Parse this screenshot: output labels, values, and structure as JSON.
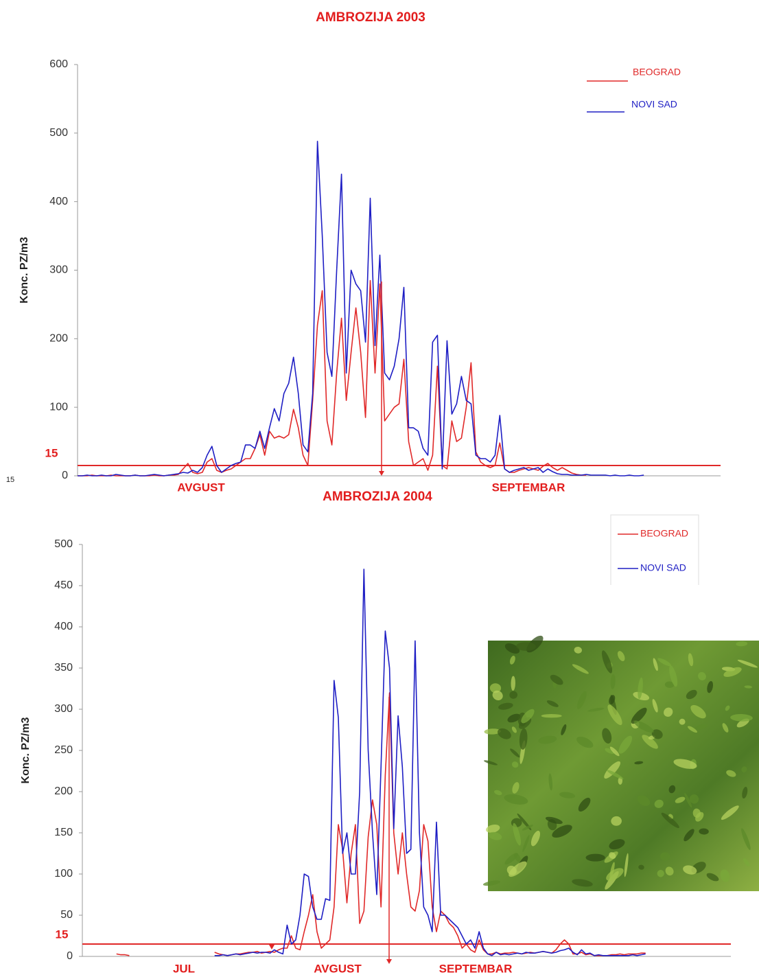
{
  "chart_data": [
    {
      "type": "line",
      "title": "AMBROZIJA 2003",
      "y_label": "Konc. PZ/m3",
      "ylim": [
        0,
        600
      ],
      "yticks": [
        0,
        100,
        200,
        300,
        400,
        500,
        600
      ],
      "threshold": 15,
      "legend": "top-right",
      "month_labels": [
        "AVGUST",
        "SEPTEMBAR"
      ],
      "series": [
        {
          "name": "BEOGRAD",
          "color": "#e02828",
          "values": [
            0,
            0,
            0,
            1,
            0,
            0,
            0,
            1,
            0,
            0,
            0,
            0,
            1,
            0,
            0,
            0,
            1,
            0,
            0,
            1,
            1,
            2,
            10,
            18,
            5,
            3,
            5,
            20,
            25,
            8,
            5,
            8,
            10,
            15,
            20,
            25,
            25,
            40,
            60,
            30,
            65,
            55,
            58,
            55,
            60,
            97,
            70,
            30,
            15,
            110,
            220,
            270,
            80,
            45,
            150,
            230,
            110,
            180,
            245,
            180,
            85,
            285,
            150,
            280,
            80,
            90,
            100,
            105,
            170,
            50,
            15,
            20,
            25,
            8,
            30,
            160,
            15,
            10,
            80,
            50,
            55,
            100,
            165,
            35,
            20,
            15,
            12,
            15,
            48,
            10,
            5,
            5,
            8,
            10,
            12,
            10,
            8,
            14,
            18,
            12,
            8,
            12,
            8,
            4,
            2,
            1,
            1,
            null,
            null,
            null,
            null,
            null,
            null,
            null,
            null,
            null,
            null,
            null,
            null,
            null,
            null,
            null,
            null,
            null,
            null,
            null,
            null,
            null,
            null,
            null,
            null,
            null,
            null,
            null,
            null
          ]
        },
        {
          "name": "NOVI SAD",
          "color": "#1e1ec4",
          "values": [
            0,
            0,
            1,
            0,
            0,
            1,
            0,
            0,
            2,
            1,
            0,
            0,
            1,
            0,
            0,
            1,
            2,
            1,
            0,
            1,
            2,
            3,
            5,
            4,
            8,
            5,
            12,
            30,
            43,
            15,
            5,
            10,
            15,
            18,
            20,
            45,
            45,
            40,
            65,
            40,
            70,
            98,
            80,
            120,
            135,
            173,
            120,
            45,
            35,
            120,
            488,
            350,
            180,
            145,
            300,
            440,
            150,
            300,
            280,
            270,
            195,
            405,
            190,
            322,
            150,
            140,
            160,
            200,
            275,
            70,
            70,
            65,
            40,
            30,
            195,
            205,
            10,
            197,
            90,
            105,
            145,
            110,
            105,
            30,
            25,
            25,
            20,
            30,
            88,
            10,
            5,
            8,
            10,
            12,
            8,
            10,
            12,
            5,
            10,
            6,
            3,
            2,
            2,
            1,
            1,
            1,
            2,
            1,
            1,
            1,
            1,
            0,
            1,
            0,
            0,
            1,
            0,
            0,
            1,
            null,
            null,
            null,
            null,
            null,
            null,
            null,
            null,
            null,
            null,
            null,
            null,
            null,
            null,
            null,
            null
          ]
        }
      ]
    },
    {
      "type": "line",
      "title": "AMBROZIJA 2004",
      "y_label": "Konc. PZ/m3",
      "ylim": [
        0,
        500
      ],
      "yticks": [
        0,
        50,
        100,
        150,
        200,
        250,
        300,
        350,
        400,
        450,
        500
      ],
      "threshold": 15,
      "legend": "top-right",
      "month_labels": [
        "JUL",
        "AVGUST",
        "SEPTEMBAR"
      ],
      "series": [
        {
          "name": "BEOGRAD",
          "color": "#e02828",
          "values": [
            null,
            null,
            null,
            null,
            null,
            null,
            null,
            null,
            3,
            2,
            2,
            1,
            null,
            null,
            null,
            null,
            null,
            null,
            null,
            null,
            null,
            null,
            null,
            null,
            null,
            3,
            null,
            null,
            null,
            null,
            null,
            5,
            3,
            2,
            1,
            2,
            3,
            3,
            4,
            5,
            5,
            6,
            4,
            5,
            6,
            5,
            8,
            10,
            10,
            25,
            10,
            8,
            30,
            50,
            75,
            30,
            10,
            15,
            20,
            60,
            160,
            130,
            65,
            125,
            160,
            40,
            55,
            145,
            190,
            160,
            60,
            220,
            320,
            150,
            100,
            150,
            100,
            60,
            55,
            80,
            160,
            140,
            60,
            30,
            55,
            50,
            40,
            35,
            25,
            10,
            15,
            8,
            5,
            20,
            8,
            3,
            3,
            5,
            3,
            4,
            4,
            5,
            4,
            3,
            4,
            5,
            4,
            5,
            6,
            5,
            4,
            8,
            15,
            20,
            15,
            3,
            3,
            5,
            2,
            3,
            1,
            1,
            1,
            1,
            2,
            2,
            3,
            2,
            3,
            3,
            3,
            4,
            4,
            null,
            null,
            null,
            null,
            null,
            null,
            null,
            null,
            null,
            null,
            null,
            null,
            null,
            null,
            null,
            null,
            null,
            null,
            null,
            null
          ]
        },
        {
          "name": "NOVI SAD",
          "color": "#1e1ec4",
          "values": [
            null,
            null,
            null,
            null,
            null,
            null,
            null,
            null,
            null,
            null,
            null,
            null,
            null,
            null,
            null,
            null,
            null,
            null,
            null,
            null,
            null,
            null,
            null,
            null,
            null,
            null,
            null,
            null,
            null,
            null,
            null,
            1,
            1,
            2,
            1,
            2,
            3,
            2,
            3,
            4,
            5,
            4,
            5,
            5,
            4,
            8,
            5,
            3,
            38,
            15,
            20,
            50,
            100,
            97,
            60,
            45,
            45,
            70,
            68,
            335,
            290,
            125,
            150,
            100,
            100,
            200,
            470,
            250,
            150,
            75,
            230,
            395,
            350,
            155,
            292,
            230,
            125,
            130,
            383,
            150,
            60,
            50,
            30,
            163,
            50,
            50,
            45,
            40,
            35,
            25,
            15,
            20,
            10,
            30,
            10,
            3,
            1,
            5,
            2,
            3,
            2,
            3,
            4,
            3,
            5,
            4,
            4,
            5,
            6,
            5,
            4,
            5,
            7,
            8,
            10,
            5,
            2,
            8,
            3,
            4,
            1,
            2,
            1,
            1,
            1,
            1,
            1,
            1,
            1,
            2,
            1,
            2,
            3,
            null,
            null,
            null,
            null,
            null,
            null,
            null,
            null,
            null,
            null,
            null,
            null,
            null,
            null,
            null,
            null,
            null,
            null,
            null,
            null
          ]
        }
      ]
    }
  ]
}
